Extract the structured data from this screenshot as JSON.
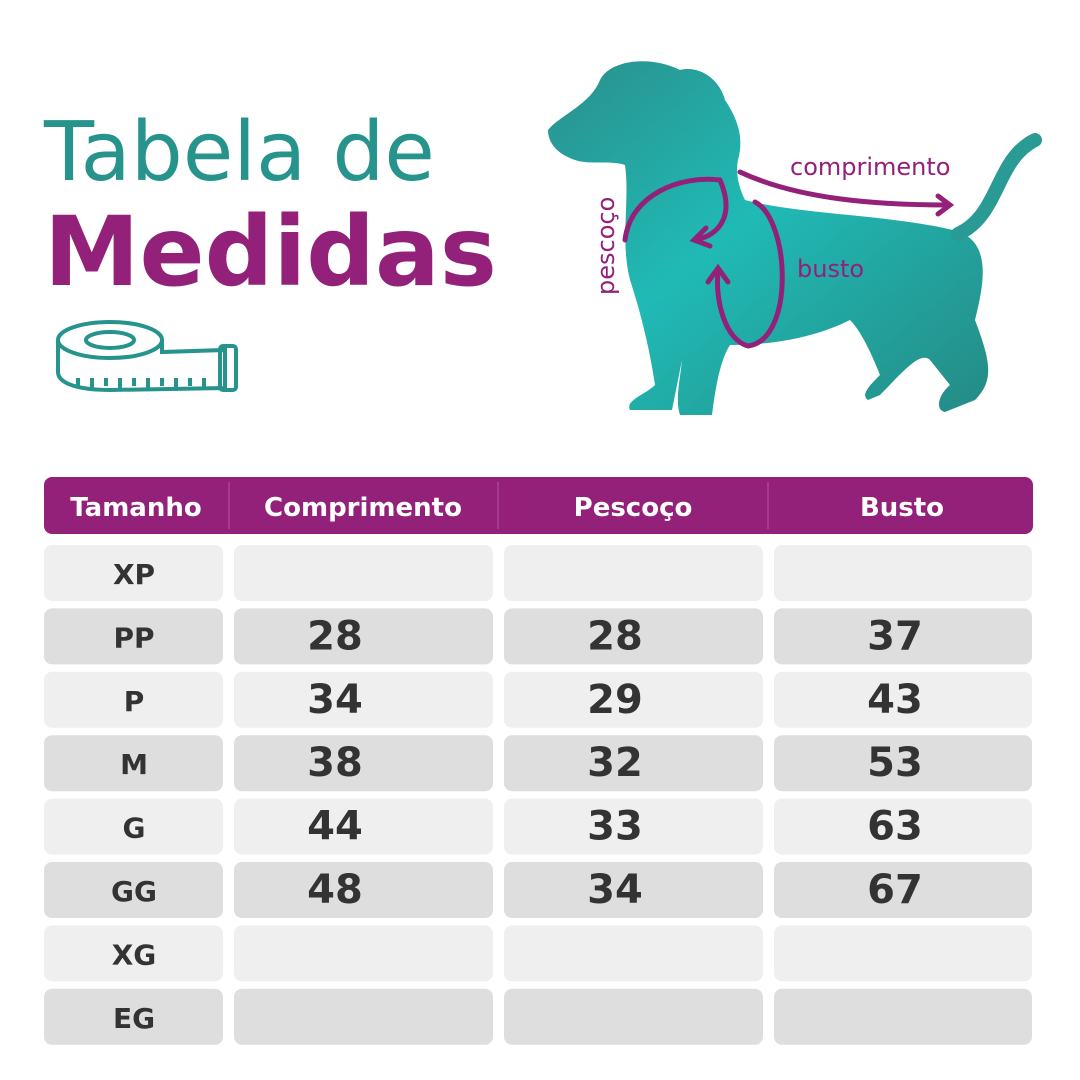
{
  "header": {
    "title_line1": "Tabela de",
    "title_line2": "Medidas"
  },
  "diagram": {
    "length_label": "comprimento",
    "neck_label": "pescoço",
    "chest_label": "busto"
  },
  "table": {
    "columns": [
      "Tamanho",
      "Comprimento",
      "Pescoço",
      "Busto"
    ],
    "rows": [
      [
        "XP",
        null,
        null,
        null
      ],
      [
        "PP",
        28,
        28,
        37
      ],
      [
        "P",
        34,
        29,
        43
      ],
      [
        "M",
        38,
        32,
        53
      ],
      [
        "G",
        44,
        33,
        63
      ],
      [
        "GG",
        48,
        34,
        67
      ],
      [
        "XG",
        null,
        null,
        null
      ],
      [
        "EG",
        null,
        null,
        null
      ]
    ]
  }
}
